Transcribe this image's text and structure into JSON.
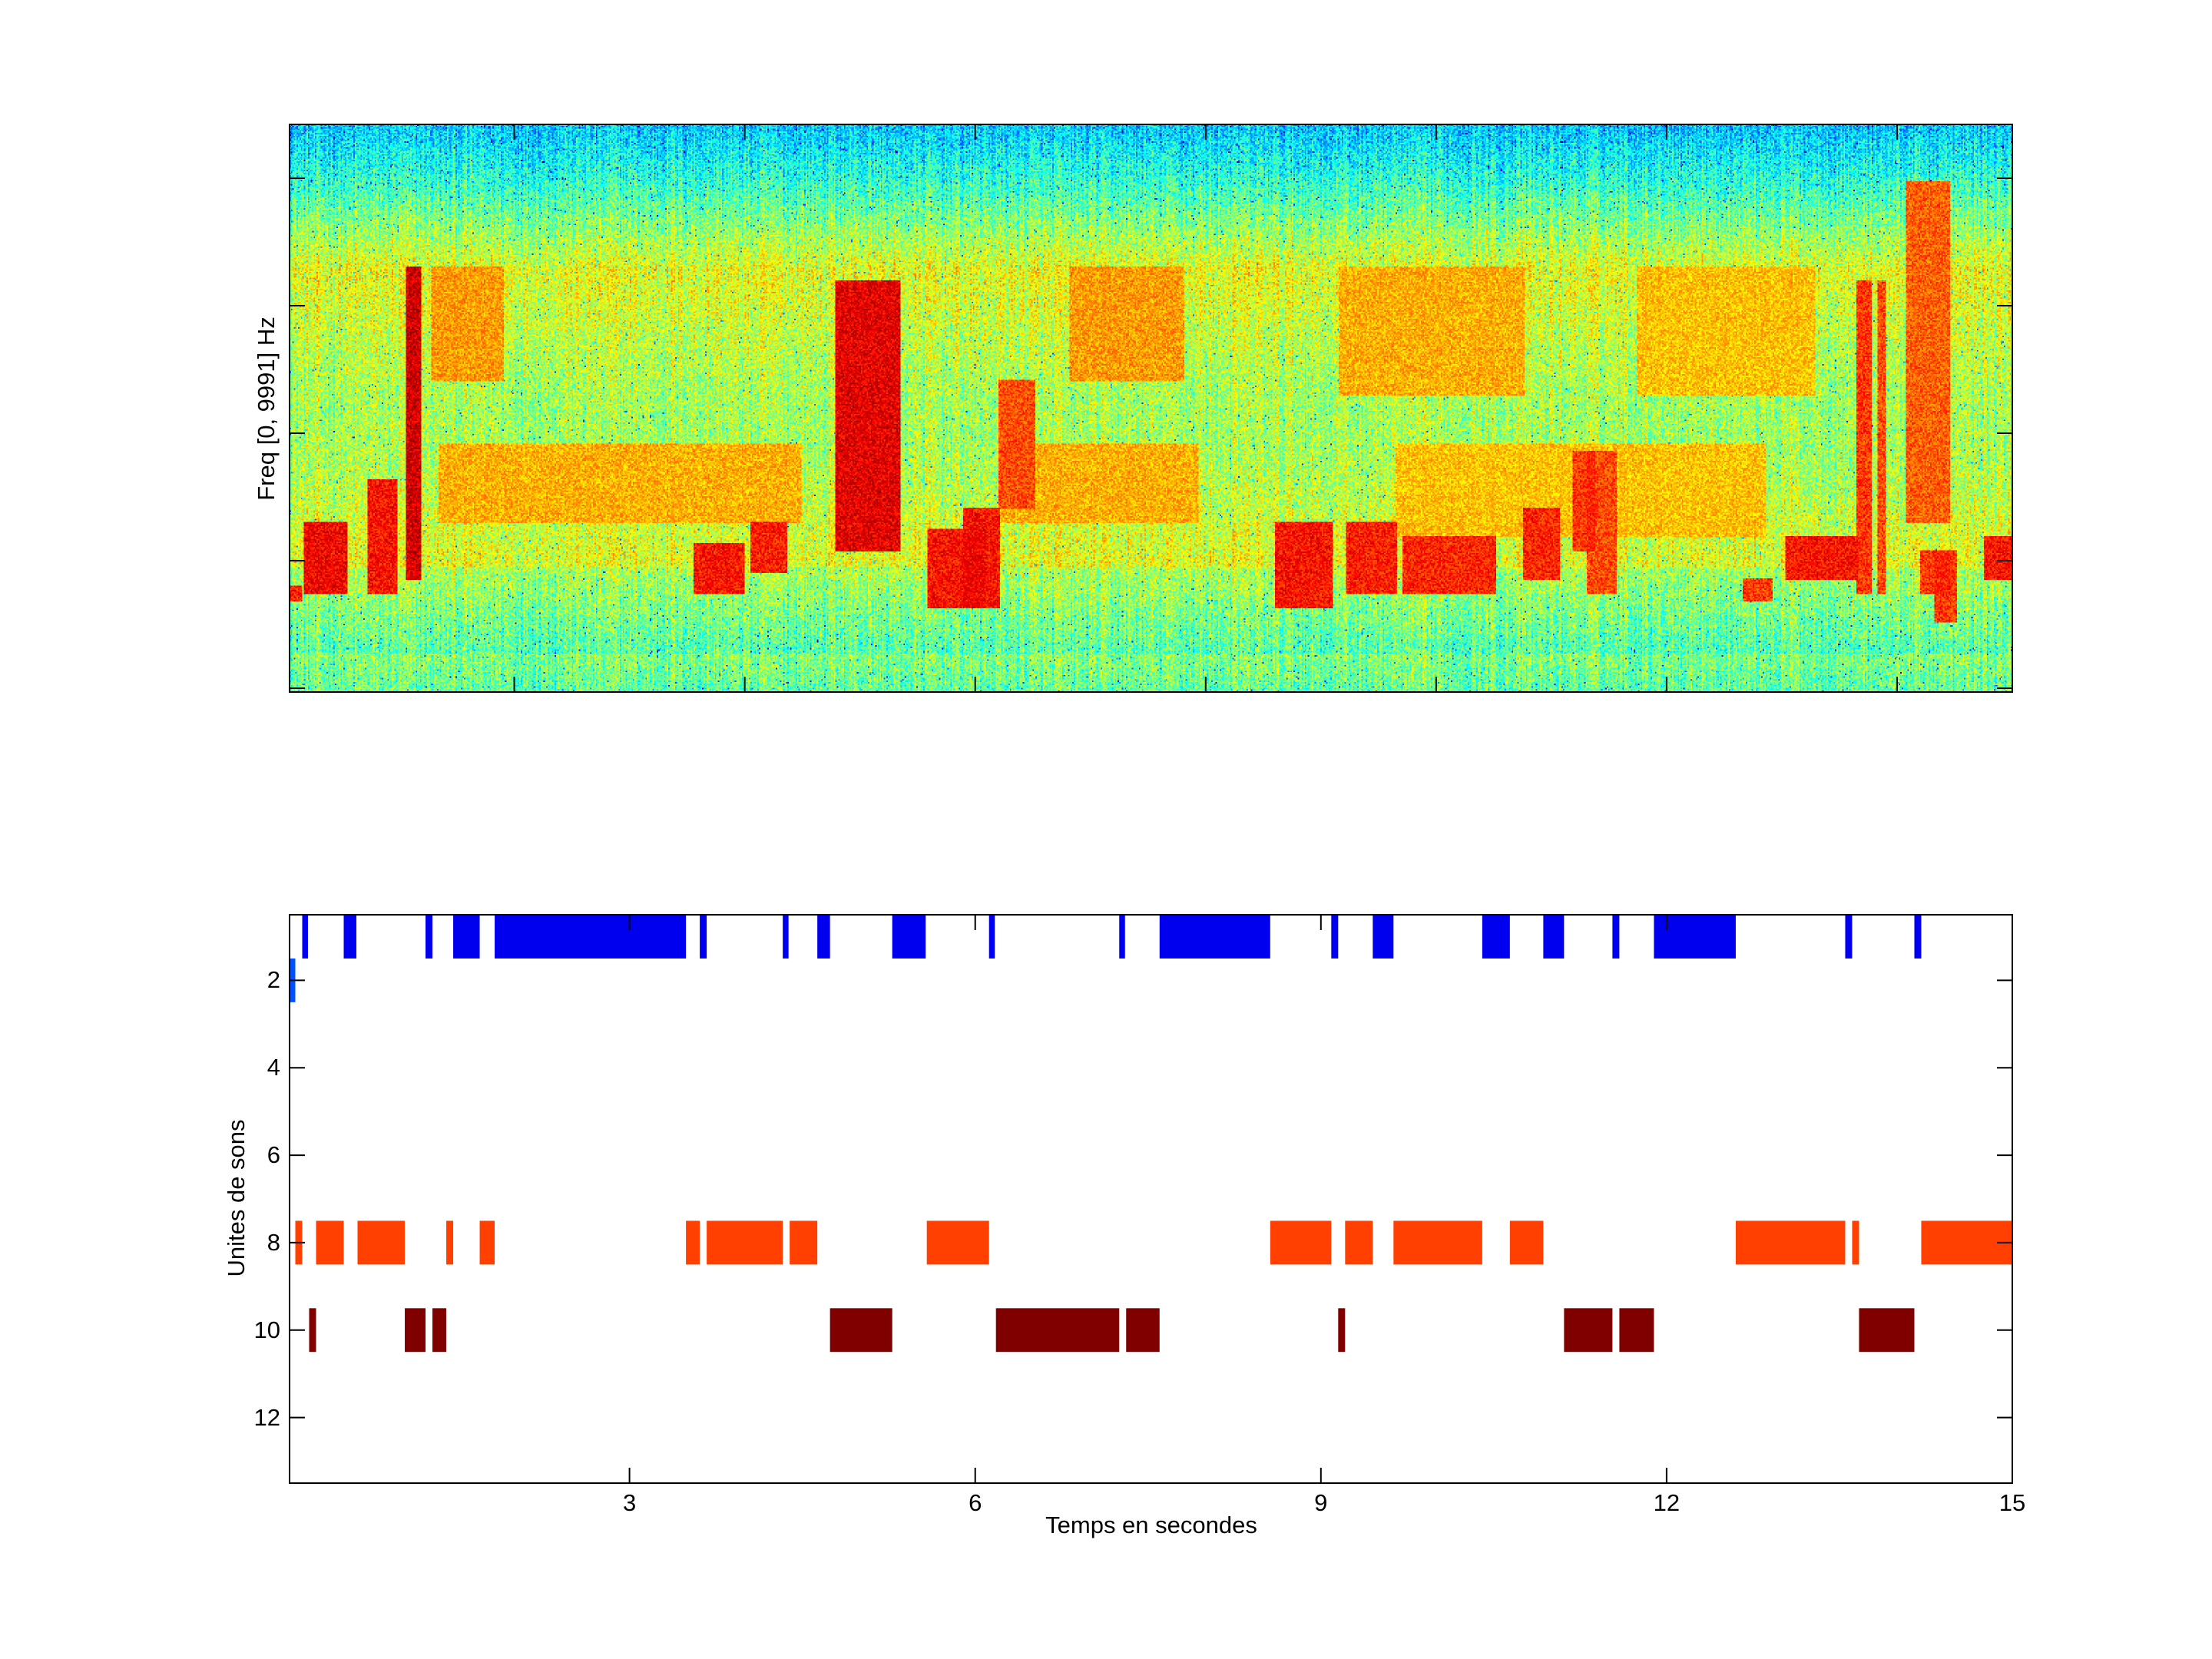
{
  "chart_data": [
    {
      "type": "heatmap",
      "title": "",
      "xlabel": "",
      "ylabel": "Freq [0, 9991] Hz",
      "xlim": [
        0.05,
        15
      ],
      "colormap": "jet"
    },
    {
      "type": "bar",
      "title": "",
      "xlabel": "Temps en secondes",
      "ylabel": "Unites de sons",
      "xlim": [
        0.05,
        15
      ],
      "ylim": [
        0.5,
        13.5
      ],
      "y_reversed": true,
      "xticks": [
        "3",
        "6",
        "9",
        "12",
        "15"
      ],
      "yticks": [
        "2",
        "4",
        "6",
        "8",
        "10",
        "12"
      ],
      "grid": false,
      "series": [
        {
          "unit": 1,
          "color": "#0000EE",
          "intervals": [
            [
              0.16,
              0.21
            ],
            [
              0.52,
              0.63
            ],
            [
              1.23,
              1.29
            ],
            [
              1.47,
              1.7
            ],
            [
              1.83,
              3.49
            ],
            [
              3.61,
              3.67
            ],
            [
              4.33,
              4.38
            ],
            [
              4.63,
              4.74
            ],
            [
              5.28,
              5.57
            ],
            [
              6.12,
              6.17
            ],
            [
              7.25,
              7.3
            ],
            [
              7.6,
              8.56
            ],
            [
              9.09,
              9.15
            ],
            [
              9.45,
              9.63
            ],
            [
              10.4,
              10.64
            ],
            [
              10.93,
              11.11
            ],
            [
              11.53,
              11.59
            ],
            [
              11.89,
              12.6
            ],
            [
              13.55,
              13.61
            ],
            [
              14.15,
              14.21
            ]
          ]
        },
        {
          "unit": 2,
          "color": "#0050FF",
          "intervals": [
            [
              0.05,
              0.1
            ]
          ]
        },
        {
          "unit": 8,
          "color": "#FF4000",
          "intervals": [
            [
              0.1,
              0.16
            ],
            [
              0.28,
              0.52
            ],
            [
              0.64,
              1.05
            ],
            [
              1.41,
              1.47
            ],
            [
              1.7,
              1.83
            ],
            [
              3.49,
              3.61
            ],
            [
              3.67,
              4.33
            ],
            [
              4.39,
              4.63
            ],
            [
              5.58,
              6.12
            ],
            [
              8.56,
              9.09
            ],
            [
              9.21,
              9.45
            ],
            [
              9.63,
              10.4
            ],
            [
              10.64,
              10.93
            ],
            [
              12.6,
              13.55
            ],
            [
              13.61,
              13.67
            ],
            [
              14.21,
              15.0
            ]
          ]
        },
        {
          "unit": 10,
          "color": "#800000",
          "intervals": [
            [
              0.22,
              0.28
            ],
            [
              1.05,
              1.23
            ],
            [
              1.29,
              1.41
            ],
            [
              4.74,
              5.28
            ],
            [
              6.18,
              7.25
            ],
            [
              7.31,
              7.6
            ],
            [
              9.15,
              9.21
            ],
            [
              11.11,
              11.53
            ],
            [
              11.59,
              11.89
            ],
            [
              13.67,
              14.15
            ]
          ]
        }
      ]
    }
  ]
}
